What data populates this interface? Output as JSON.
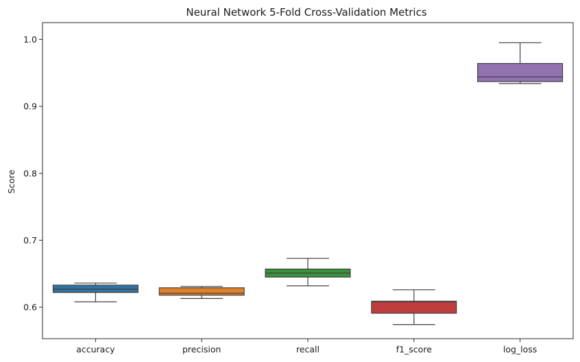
{
  "chart_data": {
    "type": "boxplot",
    "title": "Neural Network 5-Fold Cross-Validation Metrics",
    "xlabel": "",
    "ylabel": "Score",
    "ylim": [
      0.553,
      1.025
    ],
    "yticks": [
      0.6,
      0.7,
      0.8,
      0.9,
      1.0
    ],
    "ytick_labels": [
      "0.6",
      "0.7",
      "0.8",
      "0.9",
      "1.0"
    ],
    "grid": false,
    "categories": [
      "accuracy",
      "precision",
      "recall",
      "f1_score",
      "log_loss"
    ],
    "boxes": [
      {
        "category": "accuracy",
        "color": "#3274a1",
        "whislo": 0.608,
        "q1": 0.622,
        "med": 0.627,
        "q3": 0.633,
        "whishi": 0.636
      },
      {
        "category": "precision",
        "color": "#e1812c",
        "whislo": 0.613,
        "q1": 0.618,
        "med": 0.621,
        "q3": 0.629,
        "whishi": 0.631
      },
      {
        "category": "recall",
        "color": "#3a923a",
        "whislo": 0.632,
        "q1": 0.645,
        "med": 0.651,
        "q3": 0.657,
        "whishi": 0.673
      },
      {
        "category": "f1_score",
        "color": "#c03d3e",
        "whislo": 0.574,
        "q1": 0.591,
        "med": 0.608,
        "q3": 0.609,
        "whishi": 0.626
      },
      {
        "category": "log_loss",
        "color": "#9372b2",
        "whislo": 0.934,
        "q1": 0.937,
        "med": 0.944,
        "q3": 0.964,
        "whishi": 0.995
      }
    ]
  }
}
